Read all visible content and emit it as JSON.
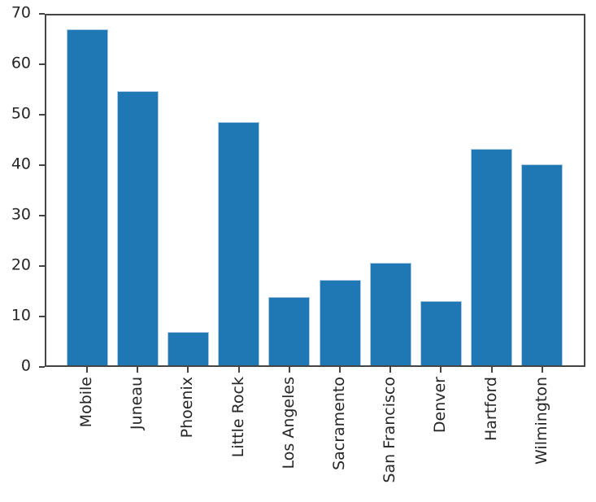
{
  "chart_data": {
    "type": "bar",
    "categories": [
      "Mobile",
      "Juneau",
      "Phoenix",
      "Little Rock",
      "Los Angeles",
      "Sacramento",
      "San Francisco",
      "Denver",
      "Hartford",
      "Wilmington"
    ],
    "values": [
      67.0,
      54.7,
      7.0,
      48.5,
      13.8,
      17.2,
      20.7,
      13.0,
      43.3,
      40.2
    ],
    "title": "",
    "xlabel": "",
    "ylabel": "",
    "ylim": [
      0,
      70
    ],
    "yticks": [
      0,
      10,
      20,
      30,
      40,
      50,
      60,
      70
    ],
    "grid": false,
    "legend": null,
    "x_tick_label_rotation_deg": 90,
    "bar_color": "#1f77b4"
  },
  "colors": {
    "bar": "#1f77b4",
    "bar_edge_halo": "#aecbe5",
    "spine": "#454545",
    "text": "#262626",
    "background": "#ffffff"
  }
}
